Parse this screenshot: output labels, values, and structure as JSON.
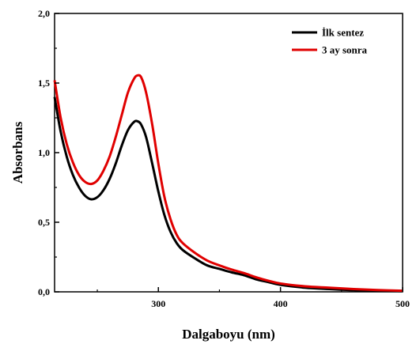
{
  "chart_data": {
    "type": "line",
    "xlabel": "Dalgaboyu (nm)",
    "ylabel": "Absorbans",
    "xlim": [
      215,
      500
    ],
    "ylim": [
      0,
      2.0
    ],
    "x_ticks": [
      300,
      400,
      500
    ],
    "x_tick_labels": [
      "300",
      "400",
      "500"
    ],
    "y_ticks": [
      0,
      0.5,
      1.0,
      1.5,
      2.0
    ],
    "y_tick_labels": [
      "0,0",
      "0,5",
      "1,0",
      "1,5",
      "2,0"
    ],
    "grid": false,
    "legend_position": "top-right",
    "series": [
      {
        "name": "İlk sentez",
        "color": "#000000",
        "x": [
          215,
          220,
          225,
          230,
          235,
          240,
          245,
          250,
          255,
          260,
          265,
          270,
          275,
          280,
          283,
          286,
          290,
          295,
          300,
          305,
          310,
          315,
          320,
          330,
          340,
          350,
          360,
          370,
          380,
          390,
          400,
          420,
          440,
          460,
          480,
          500
        ],
        "y": [
          1.4,
          1.15,
          0.97,
          0.84,
          0.75,
          0.69,
          0.665,
          0.68,
          0.73,
          0.81,
          0.92,
          1.05,
          1.16,
          1.22,
          1.225,
          1.2,
          1.11,
          0.92,
          0.72,
          0.55,
          0.43,
          0.35,
          0.3,
          0.24,
          0.19,
          0.165,
          0.14,
          0.12,
          0.09,
          0.07,
          0.05,
          0.03,
          0.02,
          0.012,
          0.008,
          0.005
        ]
      },
      {
        "name": "3 ay sonra",
        "color": "#e00000",
        "x": [
          215,
          220,
          225,
          230,
          235,
          240,
          245,
          250,
          255,
          260,
          265,
          270,
          275,
          280,
          283,
          286,
          290,
          295,
          300,
          305,
          310,
          315,
          320,
          330,
          340,
          350,
          360,
          370,
          380,
          390,
          400,
          420,
          440,
          460,
          480,
          500
        ],
        "y": [
          1.52,
          1.25,
          1.06,
          0.93,
          0.84,
          0.79,
          0.775,
          0.8,
          0.87,
          0.97,
          1.11,
          1.27,
          1.43,
          1.53,
          1.555,
          1.54,
          1.43,
          1.2,
          0.92,
          0.68,
          0.52,
          0.41,
          0.35,
          0.28,
          0.225,
          0.19,
          0.16,
          0.135,
          0.105,
          0.08,
          0.06,
          0.04,
          0.03,
          0.02,
          0.013,
          0.008
        ]
      }
    ]
  }
}
